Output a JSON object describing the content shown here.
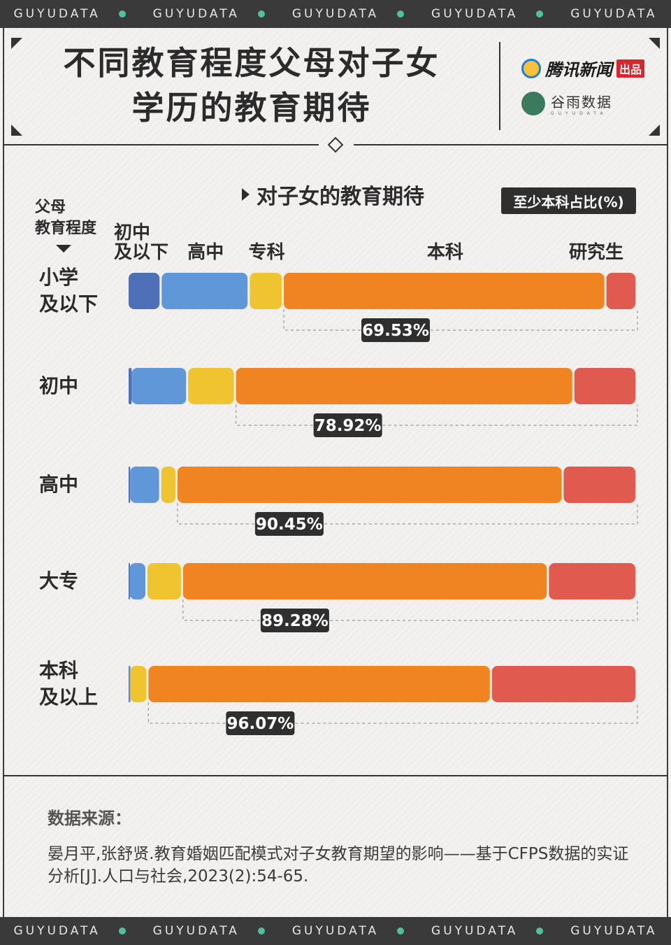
{
  "band_text": "GUYUDATA",
  "title_line1": "不同教育程度父母对子女",
  "title_line2": "学历的教育期待",
  "logo_tencent": "腾讯新闻",
  "logo_tencent_tag": "出品",
  "logo_guyu": "谷雨数据",
  "logo_guyu_sub": "GUYUDATA",
  "subtitle": "对子女的教育期待",
  "badge": "至少本科占比(%)",
  "axis_title_line1": "父母",
  "axis_title_line2": "教育程度",
  "colors": {
    "初中及以下": "#4f6fb8",
    "高中": "#5f97d8",
    "专科": "#f0c330",
    "本科": "#ef8421",
    "研究生": "#e15a4f"
  },
  "chart_data": {
    "type": "bar",
    "stacked": true,
    "normalized_to": 100,
    "title": "对子女的教育期待",
    "ylabel": "父母教育程度",
    "categories": [
      "小学及以下",
      "初中",
      "高中",
      "大专",
      "本科及以上"
    ],
    "category_lines": [
      [
        "小学",
        "及以下"
      ],
      [
        "初中"
      ],
      [
        "高中"
      ],
      [
        "大专"
      ],
      [
        "本科",
        "及以上"
      ]
    ],
    "series_labels": [
      [
        "初中",
        "及以下"
      ],
      [
        "高中"
      ],
      [
        "专科"
      ],
      [
        "本科"
      ],
      [
        "研究生"
      ]
    ],
    "series": [
      {
        "name": "初中及以下",
        "values": [
          6.5,
          0.6,
          0.3,
          0.2,
          0.1
        ]
      },
      {
        "name": "高中",
        "values": [
          17.3,
          11.1,
          6.1,
          3.5,
          0.2
        ]
      },
      {
        "name": "专科",
        "values": [
          6.7,
          9.4,
          3.2,
          7.0,
          3.6
        ]
      },
      {
        "name": "本科",
        "values": [
          63.4,
          66.5,
          75.9,
          71.9,
          67.5
        ]
      },
      {
        "name": "研究生",
        "values": [
          6.1,
          12.4,
          14.5,
          17.4,
          28.6
        ]
      }
    ],
    "at_least_bachelor_pct": [
      "69.53%",
      "78.92%",
      "90.45%",
      "89.28%",
      "96.07%"
    ]
  },
  "source_title": "数据来源：",
  "source_text": "晏月平,张舒贤.教育婚姻匹配模式对子女教育期望的影响——基于CFPS数据的实证分析[J].人口与社会,2023(2):54-65."
}
